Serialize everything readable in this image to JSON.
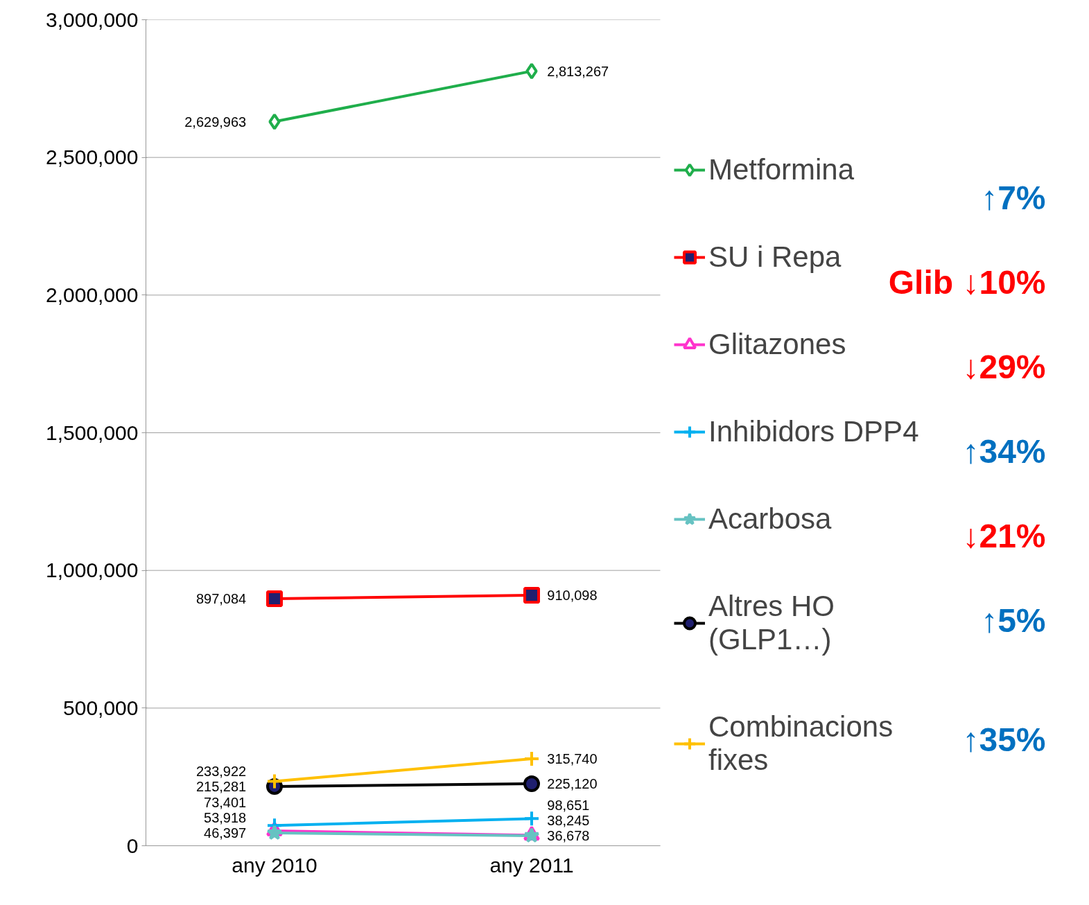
{
  "chart_data": {
    "type": "line",
    "categories": [
      "any 2010",
      "any 2011"
    ],
    "series": [
      {
        "name": "Metformina",
        "color": "#1fae4b",
        "marker": "diamond",
        "values": [
          2629963,
          2813267
        ],
        "value_labels": [
          "2,629,963",
          "2,813,267"
        ]
      },
      {
        "name": "SU i Repa",
        "color": "#ff0000",
        "marker": "square",
        "values": [
          897084,
          910098
        ],
        "value_labels": [
          "897,084",
          "910,098"
        ]
      },
      {
        "name": "Glitazones",
        "color": "#ff33cc",
        "marker": "triangle",
        "values": [
          53918,
          38245
        ],
        "value_labels": [
          "53,918",
          "38,245"
        ]
      },
      {
        "name": "Inhibidors DPP4",
        "color": "#00b0f0",
        "marker": "cross",
        "values": [
          73401,
          98651
        ],
        "value_labels": [
          "73,401",
          "98,651"
        ]
      },
      {
        "name": "Acarbosa",
        "color": "#66c2c2",
        "marker": "star",
        "values": [
          46397,
          36678
        ],
        "value_labels": [
          "46,397",
          "36,678"
        ]
      },
      {
        "name": "Altres HO (GLP1…)",
        "color": "#000000",
        "marker": "circle",
        "values": [
          215281,
          225120
        ],
        "value_labels": [
          "215,281",
          "225,120"
        ]
      },
      {
        "name": "Combinacions fixes",
        "color": "#ffc000",
        "marker": "cross",
        "values": [
          233922,
          315740
        ],
        "value_labels": [
          "233,922",
          "315,740"
        ]
      }
    ],
    "ylim": [
      0,
      3000000
    ],
    "yticks": [
      {
        "value": 0,
        "label": "0"
      },
      {
        "value": 500000,
        "label": "500,000"
      },
      {
        "value": 1000000,
        "label": "1,000,000"
      },
      {
        "value": 1500000,
        "label": "1,500,000"
      },
      {
        "value": 2000000,
        "label": "2,000,000"
      },
      {
        "value": 2500000,
        "label": "2,500,000"
      },
      {
        "value": 3000000,
        "label": "3,000,000"
      }
    ],
    "grid": "y",
    "legend": "right",
    "line_style": "solid",
    "annotations": [
      "↑7%",
      "Glib ↓10%",
      "↓29%",
      "↑34%",
      "↓21%",
      "↑5%",
      "↑35%"
    ]
  }
}
